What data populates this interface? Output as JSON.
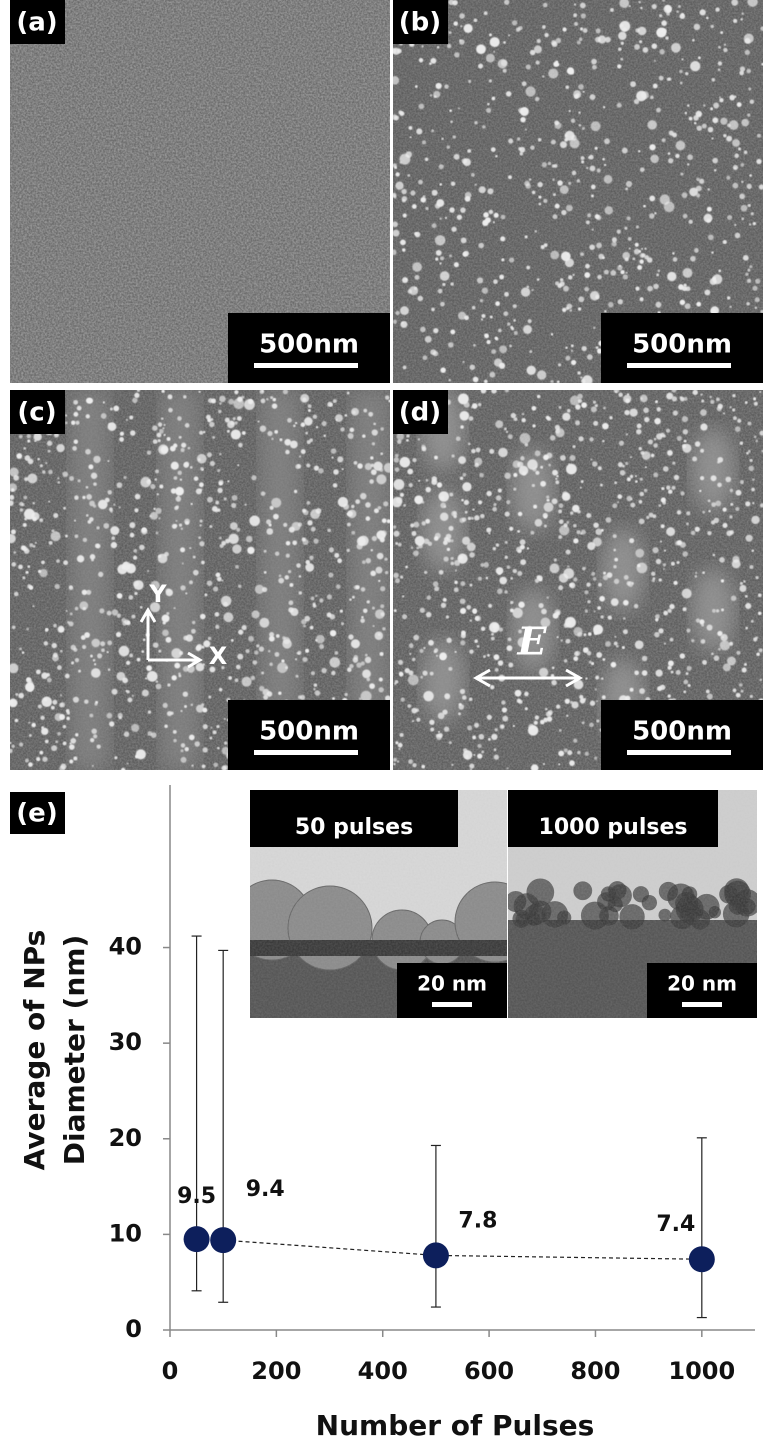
{
  "panels": [
    {
      "label": "(a)",
      "scale_bar": "500nm"
    },
    {
      "label": "(b)",
      "scale_bar": "500nm"
    },
    {
      "label": "(c)",
      "scale_bar": "500nm"
    },
    {
      "label": "(d)",
      "scale_bar": "500nm"
    }
  ],
  "annotations": {
    "axis_y": "Y",
    "axis_x": "X",
    "field": "E"
  },
  "chart_data": {
    "type": "scatter",
    "panel_label": "(e)",
    "x_label": "Number of Pulses",
    "y_label": [
      "Average of NPs",
      "Diameter (nm)"
    ],
    "x": [
      50,
      100,
      500,
      1000
    ],
    "series": [
      {
        "color": "#0d1f5c",
        "values": [
          9.5,
          9.4,
          7.8,
          7.4
        ],
        "whisker_high": [
          41.2,
          39.7,
          19.3,
          20.1
        ],
        "whisker_low": [
          4.1,
          2.9,
          2.4,
          1.3
        ]
      }
    ],
    "xlim": [
      0,
      1100
    ],
    "ylim": [
      0,
      57
    ],
    "xticks": [
      0,
      200,
      400,
      600,
      800,
      1000
    ],
    "yticks": [
      0,
      10,
      20,
      30,
      40
    ],
    "insets": [
      {
        "label": "50 pulses",
        "scale_bar": "20 nm"
      },
      {
        "label": "1000 pulses",
        "scale_bar": "20 nm"
      }
    ]
  }
}
